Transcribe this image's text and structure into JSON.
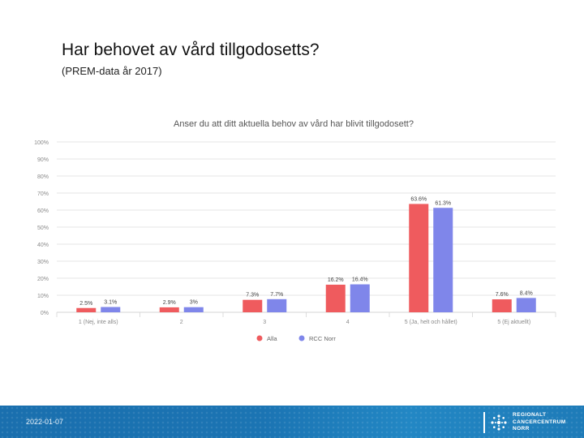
{
  "slide": {
    "title": "Har behovet av vård tillgodosetts?",
    "subtitle": "(PREM-data år 2017)",
    "date": "2022-01-07"
  },
  "logo": {
    "lines": [
      "REGIONALT",
      "CANCERCENTRUM",
      "NORR"
    ]
  },
  "chart_data": {
    "type": "bar",
    "title": "Anser du att ditt aktuella behov av vård har blivit tillgodosett?",
    "categories": [
      "1 (Nej, inte alls)",
      "2",
      "3",
      "4",
      "5 (Ja, helt och hållet)",
      "5 (Ej aktuellt)"
    ],
    "series": [
      {
        "name": "Alla",
        "color": "#ef5b5e",
        "values": [
          2.5,
          2.9,
          7.3,
          16.2,
          63.6,
          7.6
        ],
        "labels": [
          "2.5%",
          "2.9%",
          "7.3%",
          "16.2%",
          "63.6%",
          "7.6%"
        ]
      },
      {
        "name": "RCC Norr",
        "color": "#7f86ea",
        "values": [
          3.1,
          3.0,
          7.7,
          16.4,
          61.3,
          8.4
        ],
        "labels": [
          "3.1%",
          "3%",
          "7.7%",
          "16.4%",
          "61.3%",
          "8.4%"
        ]
      }
    ],
    "yticks": [
      "0%",
      "10%",
      "20%",
      "30%",
      "40%",
      "50%",
      "60%",
      "70%",
      "80%",
      "90%",
      "100%"
    ],
    "ylim": [
      0,
      100
    ],
    "grid": true,
    "legend": "bottom-center",
    "xlabel": "",
    "ylabel": ""
  }
}
